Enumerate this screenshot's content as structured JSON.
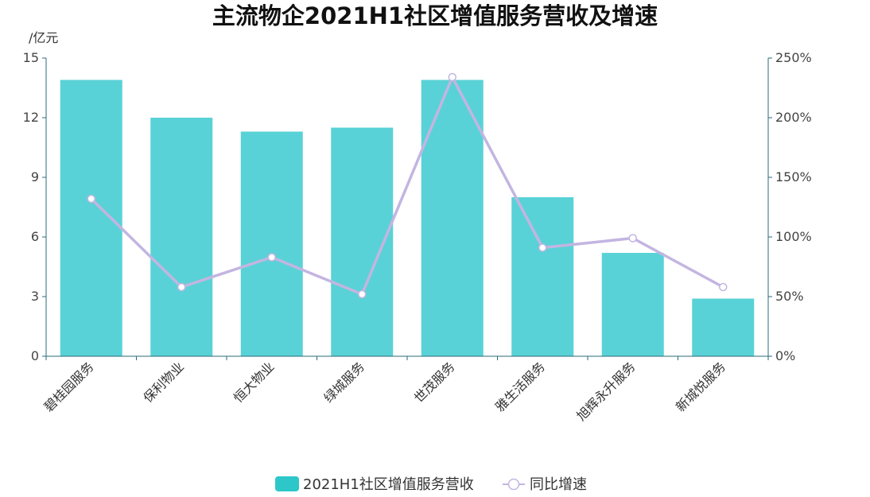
{
  "chart_data": {
    "type": "bar",
    "title": "主流物企2021H1社区增值服务营收及增速",
    "y_unit": "/亿元",
    "categories": [
      "碧桂园服务",
      "保利物业",
      "恒大物业",
      "绿城服务",
      "世茂服务",
      "雅生活服务",
      "旭辉永升服务",
      "新城悦服务"
    ],
    "series": [
      {
        "name": "2021H1社区增值服务营收",
        "type": "bar",
        "axis": "left",
        "values": [
          13.9,
          12.0,
          11.3,
          11.5,
          13.9,
          8.0,
          5.2,
          2.9
        ]
      },
      {
        "name": "同比增速",
        "type": "line",
        "axis": "right",
        "values": [
          132,
          58,
          83,
          52,
          234,
          91,
          99,
          58
        ]
      }
    ],
    "ylim_left": [
      0,
      15
    ],
    "yticks_left": [
      "0",
      "3",
      "6",
      "9",
      "12",
      "15"
    ],
    "ylim_right": [
      0,
      250
    ],
    "yticks_right": [
      "0%",
      "50%",
      "100%",
      "150%",
      "200%",
      "250%"
    ],
    "legend": "bottom",
    "grid": false,
    "colors": {
      "bar": "#59d2d7",
      "legend_bar": "#2ec7c9",
      "line": "#c3b5e1",
      "axis": "#2a6b7a"
    }
  }
}
